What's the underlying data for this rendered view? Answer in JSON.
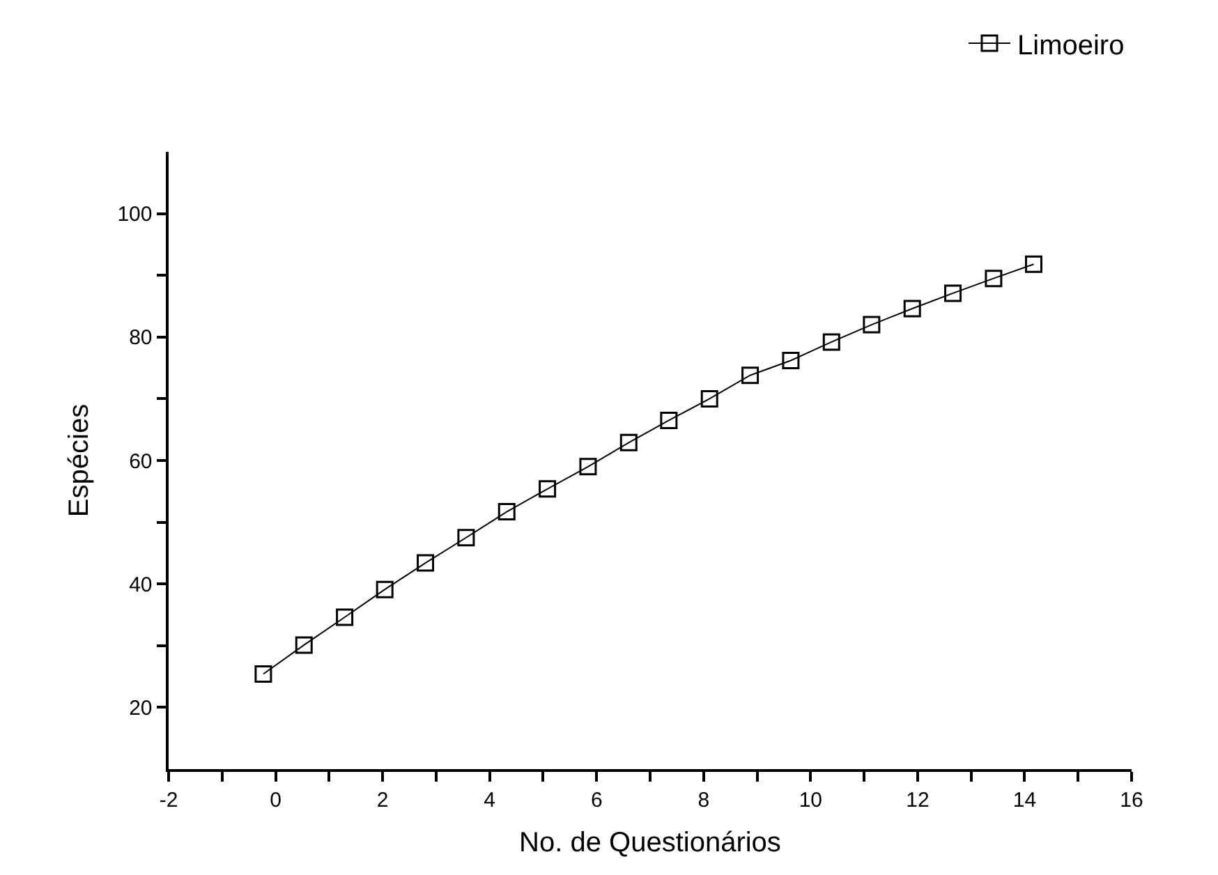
{
  "chart_data": {
    "type": "line",
    "xlabel": "No. de Questionários",
    "ylabel": "Espécies",
    "xlim": [
      -2,
      16
    ],
    "ylim": [
      10,
      110
    ],
    "xticks": [
      -2,
      {
        "value": -1,
        "label": null
      },
      0,
      {
        "value": 1,
        "label": null
      },
      2,
      {
        "value": 3,
        "label": null
      },
      4,
      {
        "value": 5,
        "label": null
      },
      6,
      {
        "value": 7,
        "label": null
      },
      8,
      {
        "value": 9,
        "label": null
      },
      10,
      {
        "value": 11,
        "label": null
      },
      12,
      {
        "value": 13,
        "label": null
      },
      14,
      {
        "value": 15,
        "label": null
      },
      16
    ],
    "yticks": [
      20,
      {
        "value": 30,
        "label": null
      },
      40,
      {
        "value": 50,
        "label": null
      },
      60,
      {
        "value": 70,
        "label": null
      },
      80,
      {
        "value": 90,
        "label": null
      },
      100
    ],
    "x": [
      -0.23,
      0.53,
      1.29,
      2.04,
      2.8,
      3.56,
      4.32,
      5.08,
      5.84,
      6.6,
      7.35,
      8.11,
      8.87,
      9.63,
      10.39,
      11.14,
      11.9,
      12.66,
      13.42,
      14.17
    ],
    "marker": "square",
    "line_style": "solid",
    "legend": "top right",
    "series": [
      {
        "name": "Limoeiro",
        "color": "#000000",
        "values": [
          25.4,
          30.1,
          34.6,
          39.1,
          43.4,
          47.5,
          51.7,
          55.4,
          59.0,
          62.9,
          66.5,
          70.0,
          73.8,
          76.2,
          79.2,
          82.0,
          84.6,
          87.1,
          89.5,
          91.8
        ]
      }
    ]
  }
}
